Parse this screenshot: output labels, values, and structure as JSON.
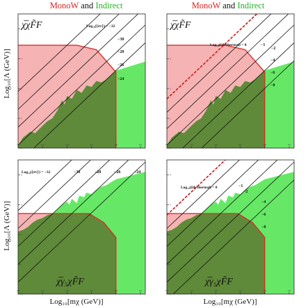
{
  "figure": {
    "header_left": {
      "red": "MonoW",
      "mid": " and ",
      "green": "Indirect"
    },
    "header_right": {
      "red": "MonoW",
      "mid": " and ",
      "green": "Indirect"
    },
    "ylabel": "Log₁₀[Λ (GeV)]",
    "xlabel": "Log₁₀[mχ (GeV)]",
    "colors": {
      "red_fill": "#f6b3b3",
      "red_line": "#e02a2a",
      "green_fill": "#66e866",
      "overlap_fill": "#5f8a3a",
      "header_red": "#e31e1e",
      "header_green": "#22b422",
      "contour": "#111111",
      "thermal": "#d01818"
    }
  },
  "chart_data": [
    {
      "type": "area",
      "panel": "top-left",
      "operator": "χ̅χF̃F",
      "xlim": [
        1.0,
        3.6
      ],
      "ylim": [
        0.0,
        4.5
      ],
      "xticks": [
        "1.0",
        "1.5",
        "2.0",
        "2.5",
        "3.0",
        "3.5"
      ],
      "yticks": [
        "0",
        "1",
        "2",
        "3",
        "4"
      ],
      "contour_title": "Log₁₀(⟨σv⟩) = −32",
      "contour_labels": [
        "−30",
        "−28",
        "−26",
        "−24"
      ],
      "contours": [
        {
          "y0": -0.5,
          "slope": 1.55
        },
        {
          "y0": 0.1,
          "slope": 1.55
        },
        {
          "y0": 0.7,
          "slope": 1.55
        },
        {
          "y0": 1.3,
          "slope": 1.55
        },
        {
          "y0": 1.9,
          "slope": 1.55
        }
      ],
      "monow_boundary": {
        "x": [
          1.0,
          2.2,
          2.6,
          3.0
        ],
        "y": [
          3.45,
          3.45,
          3.3,
          2.55
        ]
      },
      "indirect_boundary": {
        "x": [
          1.0,
          1.1,
          1.25,
          1.35,
          1.5,
          1.6,
          1.7,
          1.8,
          1.9,
          1.95,
          2.0,
          2.1,
          2.2,
          2.3,
          2.4,
          2.5,
          2.6,
          2.7,
          2.8,
          2.9,
          3.0,
          3.6
        ],
        "y": [
          0.1,
          0.35,
          0.55,
          0.5,
          0.75,
          0.9,
          1.0,
          1.25,
          1.6,
          1.45,
          1.75,
          1.65,
          1.95,
          1.85,
          2.1,
          2.05,
          2.25,
          2.2,
          2.3,
          2.45,
          2.6,
          2.9
        ]
      },
      "indirect_x_end": 3.6,
      "thermal": null
    },
    {
      "type": "area",
      "panel": "top-right",
      "operator": "χ̅χF̃F",
      "xlim": [
        1.0,
        3.6
      ],
      "ylim": [
        0.0,
        4.5
      ],
      "xticks": [
        "1.0",
        "1.5",
        "2.0",
        "2.5",
        "3.0",
        "3.5"
      ],
      "yticks": [
        "0",
        "1",
        "2",
        "3",
        "4"
      ],
      "contour_title": "Log₁₀(Ωh²thermal) = 0",
      "contour_labels": [
        "−1",
        "−2",
        "−4",
        "−6",
        "−8"
      ],
      "contours": [
        {
          "y0": 1.2,
          "slope": 1.55
        },
        {
          "y0": 0.65,
          "slope": 1.55
        },
        {
          "y0": 0.1,
          "slope": 1.55
        },
        {
          "y0": -0.5,
          "slope": 1.55
        },
        {
          "y0": -1.1,
          "slope": 1.55
        }
      ],
      "monow_boundary": {
        "x": [
          1.0,
          2.2,
          2.6,
          3.0
        ],
        "y": [
          3.45,
          3.45,
          3.3,
          2.55
        ]
      },
      "indirect_boundary": {
        "x": [
          1.0,
          1.1,
          1.25,
          1.35,
          1.5,
          1.6,
          1.7,
          1.8,
          1.9,
          1.95,
          2.0,
          2.1,
          2.2,
          2.3,
          2.4,
          2.5,
          2.6,
          2.7,
          2.8,
          2.9,
          3.0,
          3.6
        ],
        "y": [
          0.1,
          0.35,
          0.55,
          0.5,
          0.75,
          0.9,
          1.0,
          1.25,
          1.6,
          1.45,
          1.75,
          1.65,
          1.95,
          1.85,
          2.1,
          2.05,
          2.25,
          2.2,
          2.3,
          2.45,
          2.6,
          2.9
        ]
      },
      "indirect_x_end": 3.6,
      "thermal": {
        "y0": 1.65,
        "slope": 1.55
      }
    },
    {
      "type": "area",
      "panel": "bottom-left",
      "operator": "χ̅γ₅χF̃F",
      "xlim": [
        1.0,
        3.6
      ],
      "ylim": [
        0.0,
        4.5
      ],
      "xticks": [
        "1.0",
        "1.5",
        "2.0",
        "2.5",
        "3.0",
        "3.5"
      ],
      "yticks": [
        "0",
        "1",
        "2",
        "3",
        "4"
      ],
      "contour_title": "Log₁₀(⟨σv⟩) = −32",
      "contour_labels": [
        "−30",
        "−28",
        "−26",
        "−24"
      ],
      "contours": [
        {
          "y0": 0.4,
          "slope": 1.55
        },
        {
          "y0": 1.0,
          "slope": 1.55
        },
        {
          "y0": 1.6,
          "slope": 1.55
        },
        {
          "y0": 2.2,
          "slope": 1.55
        },
        {
          "y0": 2.8,
          "slope": 1.55
        }
      ],
      "monow_boundary": {
        "x": [
          1.0,
          2.45,
          2.75,
          3.0
        ],
        "y": [
          2.7,
          2.7,
          2.4,
          1.9
        ]
      },
      "indirect_boundary": {
        "x": [
          1.0,
          1.1,
          1.2,
          1.3,
          1.4,
          1.5,
          1.6,
          1.7,
          1.8,
          1.9,
          2.0,
          2.05,
          2.1,
          2.2,
          2.25,
          2.35,
          2.4,
          2.5,
          2.6,
          2.7,
          2.8,
          2.9,
          3.0,
          3.6
        ],
        "y": [
          2.1,
          2.15,
          2.25,
          2.4,
          2.5,
          2.55,
          2.65,
          2.7,
          2.85,
          3.0,
          3.1,
          3.0,
          3.2,
          3.05,
          3.3,
          3.25,
          3.4,
          3.35,
          3.5,
          3.6,
          3.65,
          3.75,
          3.85,
          4.1
        ]
      },
      "indirect_x_end": 3.6,
      "thermal": null
    },
    {
      "type": "area",
      "panel": "bottom-right",
      "operator": "χ̅γ₅χF̃F",
      "xlim": [
        1.0,
        3.6
      ],
      "ylim": [
        0.0,
        4.5
      ],
      "xticks": [
        "1.0",
        "1.5",
        "2.0",
        "2.5",
        "3.0",
        "3.5"
      ],
      "yticks": [
        "0",
        "1",
        "2",
        "3",
        "4"
      ],
      "contour_title": "Log₁₀(Ωh²thermal) = 0",
      "contour_labels": [
        "−1",
        "−2",
        "−4",
        "−6",
        "−8"
      ],
      "contours": [
        {
          "y0": 2.2,
          "slope": 1.55
        },
        {
          "y0": 1.6,
          "slope": 1.55
        },
        {
          "y0": 1.0,
          "slope": 1.55
        },
        {
          "y0": 0.4,
          "slope": 1.55
        },
        {
          "y0": -0.2,
          "slope": 1.55
        }
      ],
      "monow_boundary": {
        "x": [
          1.0,
          2.45,
          2.75,
          3.0
        ],
        "y": [
          2.7,
          2.7,
          2.4,
          1.9
        ]
      },
      "indirect_boundary": {
        "x": [
          1.0,
          1.1,
          1.2,
          1.3,
          1.4,
          1.5,
          1.6,
          1.7,
          1.8,
          1.9,
          2.0,
          2.05,
          2.1,
          2.2,
          2.25,
          2.35,
          2.4,
          2.5,
          2.6,
          2.7,
          2.8,
          2.9,
          3.0,
          3.6
        ],
        "y": [
          2.1,
          2.15,
          2.25,
          2.4,
          2.5,
          2.55,
          2.65,
          2.7,
          2.85,
          3.0,
          3.1,
          3.0,
          3.2,
          3.05,
          3.3,
          3.25,
          3.4,
          3.35,
          3.5,
          3.6,
          3.65,
          3.75,
          3.85,
          4.1
        ]
      },
      "indirect_x_end": 3.6,
      "thermal": {
        "y0": 2.65,
        "slope": 1.55
      }
    }
  ]
}
